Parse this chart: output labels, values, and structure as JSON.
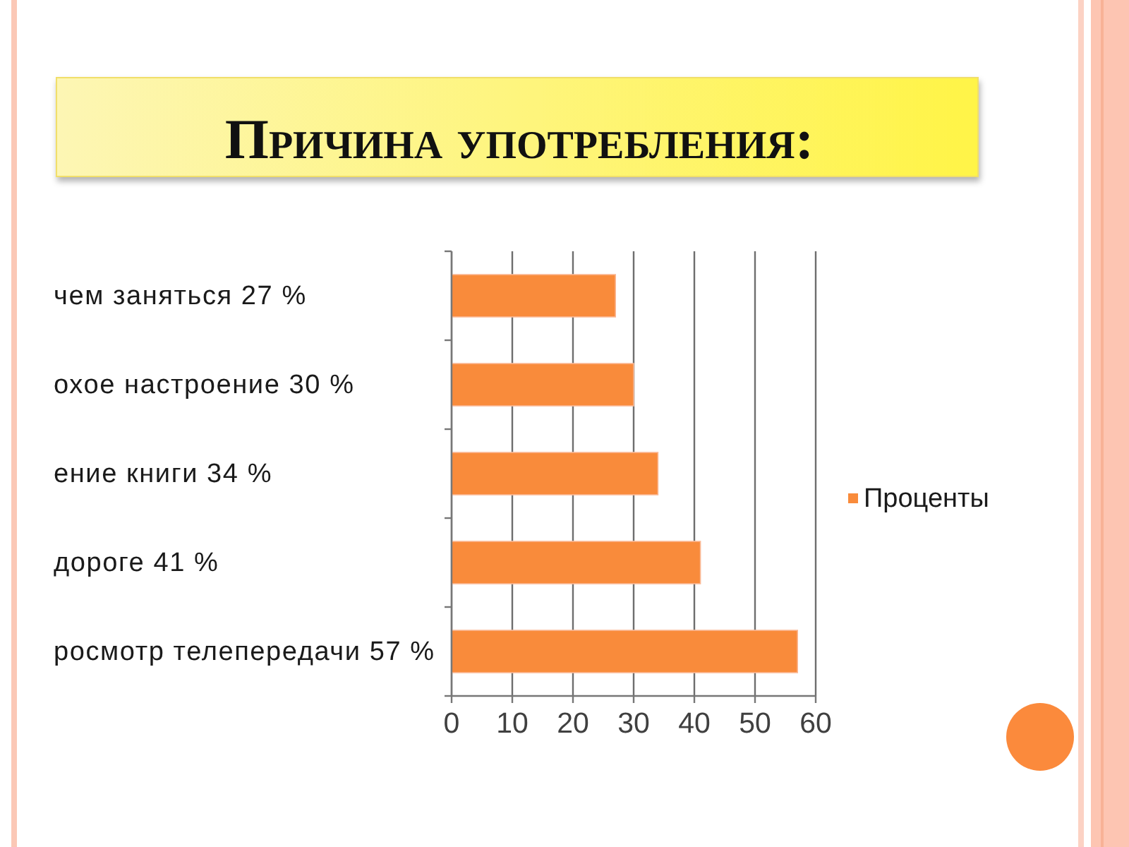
{
  "chart_data": {
    "type": "bar",
    "orientation": "horizontal",
    "title": "Причина употребления:",
    "categories": [
      "чем заняться 27 %",
      "охое настроение 30 %",
      "ение книги 34 %",
      "дороге 41 %",
      "росмотр телепередачи 57 %"
    ],
    "series": [
      {
        "name": "Проценты",
        "color": "#f98b3b",
        "values": [
          27,
          30,
          34,
          41,
          57
        ]
      }
    ],
    "xlim": [
      0,
      60
    ],
    "xticks": [
      0,
      10,
      20,
      30,
      40,
      50,
      60
    ],
    "grid": "x",
    "legend": "right"
  }
}
